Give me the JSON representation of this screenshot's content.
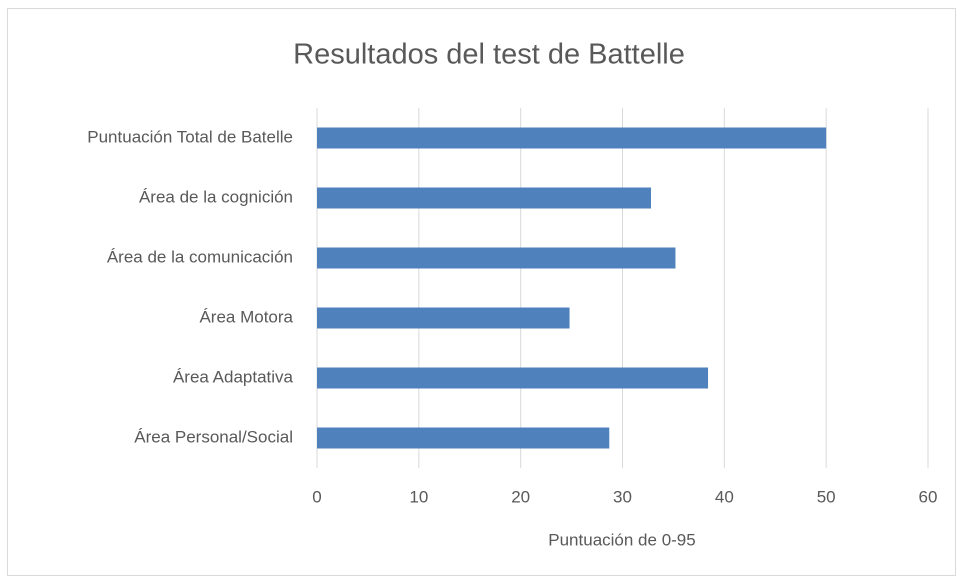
{
  "chart_data": {
    "type": "bar",
    "orientation": "horizontal",
    "title": "Resultados del test de Battelle",
    "xlabel": "Puntuación de 0-95",
    "categories": [
      "Puntuación Total de Batelle",
      "Área de la cognición",
      "Área de la comunicación",
      "Área Motora",
      "Área Adaptativa",
      "Área Personal/Social"
    ],
    "values": [
      50.0,
      32.8,
      35.2,
      24.8,
      38.4,
      28.7
    ],
    "color": "#4f81bd",
    "xlim": [
      0,
      60
    ],
    "xticks": [
      0,
      10,
      20,
      30,
      40,
      50,
      60
    ],
    "grid": true
  }
}
